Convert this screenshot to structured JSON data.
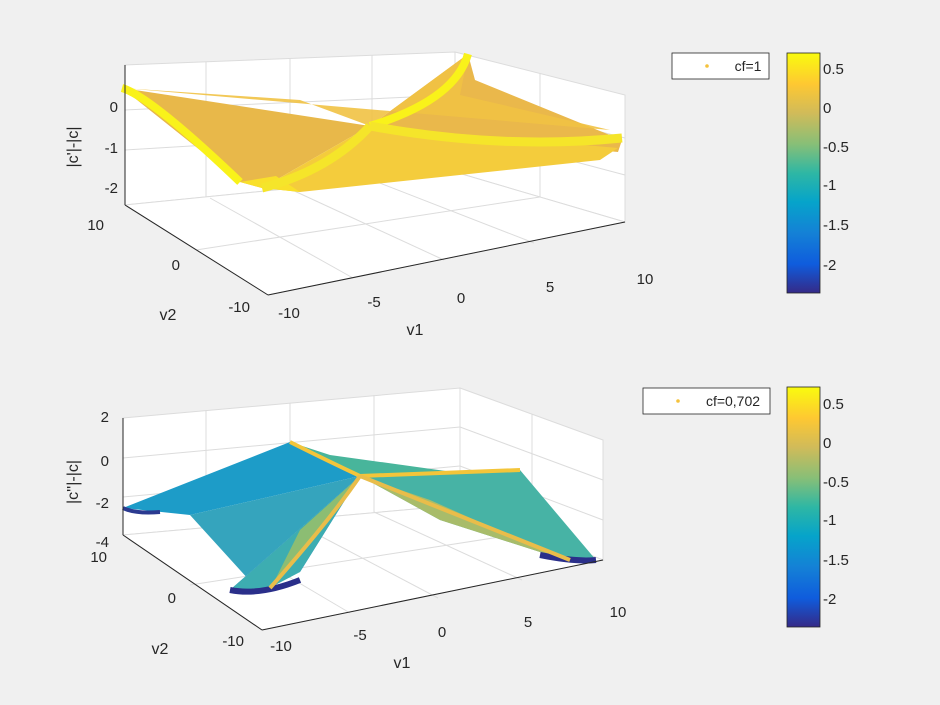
{
  "chart_data": [
    {
      "type": "scatter3d",
      "title": "",
      "xlabel": "v1",
      "ylabel": "v2",
      "zlabel": "|c'|-|c|",
      "legend": "cf=1",
      "legend_position": "top-right",
      "grid": true,
      "xlim": [
        -10,
        10
      ],
      "ylim": [
        -10,
        10
      ],
      "zlim": [
        -2.4,
        0.8
      ],
      "xticks": [
        "-10",
        "-5",
        "0",
        "5",
        "10"
      ],
      "yticks": [
        "-10",
        "0",
        "10"
      ],
      "zticks": [
        "-2",
        "-1",
        "0"
      ],
      "colorbar": {
        "min": -2.4,
        "max": 0.7,
        "ticks": [
          "0.5",
          "0",
          "-0.5",
          "-1",
          "-1.5",
          "-2"
        ]
      },
      "surface_summary": {
        "center_value": 0.0,
        "edge_min": -2.0,
        "diagonal_max": 0.7
      }
    },
    {
      "type": "scatter3d",
      "title": "",
      "xlabel": "v1",
      "ylabel": "v2",
      "zlabel": "|c''|-|c|",
      "legend": "cf=0,702",
      "legend_position": "top-right",
      "grid": true,
      "xlim": [
        -10,
        10
      ],
      "ylim": [
        -10,
        10
      ],
      "zlim": [
        -4,
        2
      ],
      "xticks": [
        "-10",
        "-5",
        "0",
        "5",
        "10"
      ],
      "yticks": [
        "-10",
        "0",
        "10"
      ],
      "zticks": [
        "2",
        "0",
        "-2",
        "-4"
      ],
      "colorbar": {
        "min": -2.4,
        "max": 0.7,
        "ticks": [
          "0.5",
          "0",
          "-0.5",
          "-1",
          "-1.5",
          "-2"
        ]
      },
      "surface_summary": {
        "center_value": 0.0,
        "edge_min": -2.4,
        "diagonal_max": 0.5
      }
    }
  ]
}
